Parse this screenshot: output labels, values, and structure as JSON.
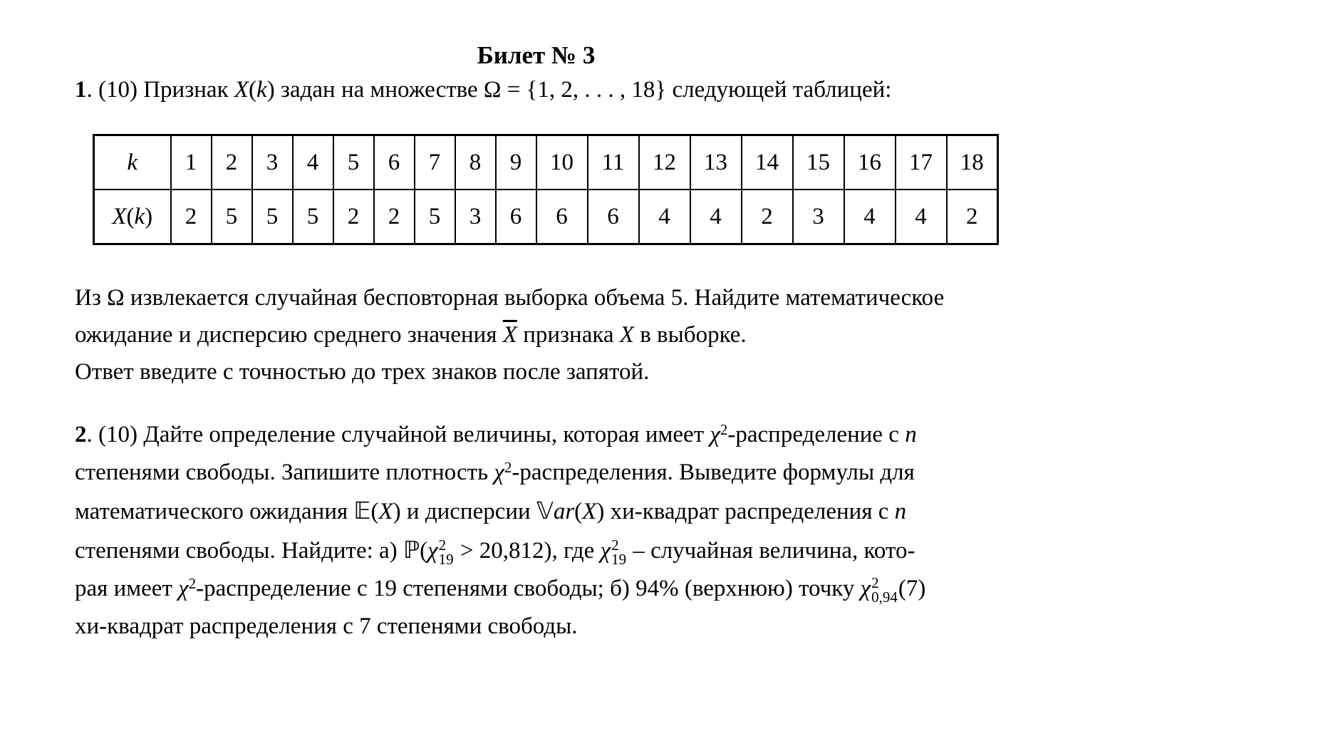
{
  "page": {
    "background": "#ffffff",
    "text_color": "#000000"
  },
  "title": {
    "text": "Билет № 3"
  },
  "problem1": {
    "intro_segments": [
      {
        "c": "b",
        "t": "1"
      },
      {
        "c": "r",
        "t": ". (10) Признак "
      },
      {
        "c": "i",
        "t": "X"
      },
      {
        "c": "r",
        "t": "("
      },
      {
        "c": "i",
        "t": "k"
      },
      {
        "c": "r",
        "t": ") задан на множестве Ω = {1, 2, . . . , 18} следующей таблицей:"
      }
    ],
    "table": {
      "header_label_segments": [
        {
          "c": "i",
          "t": "k"
        }
      ],
      "row_label_segments": [
        {
          "c": "i",
          "t": "X"
        },
        {
          "c": "r",
          "t": "("
        },
        {
          "c": "i",
          "t": "k"
        },
        {
          "c": "r",
          "t": ")"
        }
      ],
      "columns": [
        "1",
        "2",
        "3",
        "4",
        "5",
        "6",
        "7",
        "8",
        "9",
        "10",
        "11",
        "12",
        "13",
        "14",
        "15",
        "16",
        "17",
        "18"
      ],
      "values": [
        "2",
        "5",
        "5",
        "5",
        "2",
        "2",
        "5",
        "3",
        "6",
        "6",
        "6",
        "4",
        "4",
        "2",
        "3",
        "4",
        "4",
        "2"
      ]
    },
    "body_lines": [
      {
        "segments": [
          {
            "c": "r",
            "t": "Из Ω извлекается случайная бесповторная выборка объема 5. Найдите математическое"
          }
        ]
      },
      {
        "segments": [
          {
            "c": "r",
            "t": "ожидание и дисперсию среднего значения "
          },
          {
            "c": "ibar",
            "t": "X"
          },
          {
            "c": "r",
            "t": " признака "
          },
          {
            "c": "i",
            "t": "X"
          },
          {
            "c": "r",
            "t": " в выборке."
          }
        ]
      },
      {
        "segments": [
          {
            "c": "r",
            "t": "Ответ введите с точностью до трех знаков после запятой."
          }
        ]
      }
    ]
  },
  "problem2": {
    "lines": [
      {
        "segments": [
          {
            "c": "b",
            "t": "2"
          },
          {
            "c": "r",
            "t": ". (10) Дайте определение случайной величины, которая имеет "
          },
          {
            "c": "i",
            "t": "χ"
          },
          {
            "c": "sup",
            "t": "2"
          },
          {
            "c": "r",
            "t": "-распределение с "
          },
          {
            "c": "i",
            "t": "n"
          }
        ]
      },
      {
        "segments": [
          {
            "c": "r",
            "t": "степенями свободы. Запишите плотность "
          },
          {
            "c": "i",
            "t": "χ"
          },
          {
            "c": "sup",
            "t": "2"
          },
          {
            "c": "r",
            "t": "-распределения. Выведите формулы для"
          }
        ]
      },
      {
        "segments": [
          {
            "c": "r",
            "t": "математического ожидания "
          },
          {
            "c": "bb",
            "t": "𝔼"
          },
          {
            "c": "r",
            "t": "("
          },
          {
            "c": "i",
            "t": "X"
          },
          {
            "c": "r",
            "t": ") и дисперсии "
          },
          {
            "c": "bb",
            "t": "𝕍"
          },
          {
            "c": "i",
            "t": "ar"
          },
          {
            "c": "r",
            "t": "("
          },
          {
            "c": "i",
            "t": "X"
          },
          {
            "c": "r",
            "t": ") хи-квадрат распределения с "
          },
          {
            "c": "i",
            "t": "n"
          }
        ]
      },
      {
        "segments": [
          {
            "c": "r",
            "t": "степенями свободы. Найдите: а) "
          },
          {
            "c": "bb",
            "t": "ℙ"
          },
          {
            "c": "r",
            "t": "("
          },
          {
            "c": "i",
            "t": "χ"
          },
          {
            "c": "ss",
            "sup": "2",
            "sub": "19"
          },
          {
            "c": "r",
            "t": " > 20,812), где "
          },
          {
            "c": "i",
            "t": "χ"
          },
          {
            "c": "ss",
            "sup": "2",
            "sub": "19"
          },
          {
            "c": "r",
            "t": " – случайная величина, кото-"
          }
        ]
      },
      {
        "segments": [
          {
            "c": "r",
            "t": "рая имеет "
          },
          {
            "c": "i",
            "t": "χ"
          },
          {
            "c": "sup",
            "t": "2"
          },
          {
            "c": "r",
            "t": "-распределение с 19 степенями свободы; б) 94% (верхнюю) точку "
          },
          {
            "c": "i",
            "t": "χ"
          },
          {
            "c": "ss",
            "sup": "2",
            "sub": "0,94"
          },
          {
            "c": "r",
            "t": "(7)"
          }
        ]
      },
      {
        "segments": [
          {
            "c": "r",
            "t": "хи-квадрат распределения с 7 степенями свободы."
          }
        ]
      }
    ]
  }
}
